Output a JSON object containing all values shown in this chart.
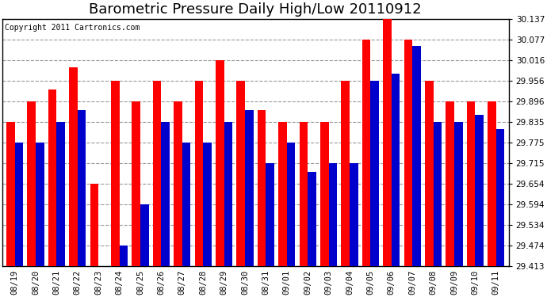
{
  "title": "Barometric Pressure Daily High/Low 20110912",
  "copyright": "Copyright 2011 Cartronics.com",
  "categories": [
    "08/19",
    "08/20",
    "08/21",
    "08/22",
    "08/23",
    "08/24",
    "08/25",
    "08/26",
    "08/27",
    "08/28",
    "08/29",
    "08/30",
    "08/31",
    "09/01",
    "09/02",
    "09/03",
    "09/04",
    "09/05",
    "09/06",
    "09/07",
    "09/08",
    "09/09",
    "09/10",
    "09/11"
  ],
  "highs": [
    29.835,
    29.896,
    29.93,
    29.996,
    29.654,
    29.956,
    29.896,
    29.956,
    29.896,
    29.956,
    30.016,
    29.956,
    29.87,
    29.835,
    29.835,
    29.835,
    29.956,
    30.077,
    30.137,
    30.077,
    29.956,
    29.896,
    29.896,
    29.896
  ],
  "lows": [
    29.775,
    29.775,
    29.835,
    29.87,
    29.413,
    29.474,
    29.594,
    29.835,
    29.775,
    29.775,
    29.835,
    29.87,
    29.715,
    29.775,
    29.69,
    29.715,
    29.715,
    29.956,
    29.977,
    30.057,
    29.835,
    29.835,
    29.855,
    29.815
  ],
  "high_color": "#ff0000",
  "low_color": "#0000cc",
  "bg_color": "#ffffff",
  "plot_bg_color": "#ffffff",
  "grid_color": "#999999",
  "yticks": [
    29.413,
    29.474,
    29.534,
    29.594,
    29.654,
    29.715,
    29.775,
    29.835,
    29.896,
    29.956,
    30.016,
    30.077,
    30.137
  ],
  "ymin": 29.413,
  "ymax": 30.137,
  "bar_width": 0.4,
  "title_fontsize": 13,
  "tick_fontsize": 7.5,
  "copyright_fontsize": 7
}
